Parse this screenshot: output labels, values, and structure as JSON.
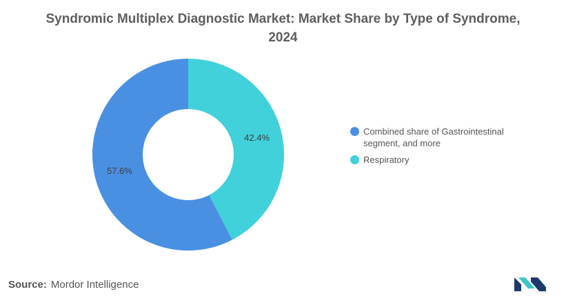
{
  "title": {
    "line1": "Syndromic Multiplex Diagnostic Market: Market Share by Type of Syndrome,",
    "line2": "2024"
  },
  "chart_data": {
    "type": "pie",
    "subtype": "donut",
    "title": "Syndromic Multiplex Diagnostic Market: Market Share by Type of Syndrome, 2024",
    "slices": [
      {
        "label": "Respiratory",
        "value": 42.4,
        "display": "42.4%",
        "color": "#40d1db"
      },
      {
        "label": "Combined share of Gastrointestinal segment, and more",
        "value": 57.6,
        "display": "57.6%",
        "color": "#4a90e2"
      }
    ],
    "legend_position": "right"
  },
  "legend": {
    "items": [
      {
        "label": "Combined share of Gastrointestinal segment, and more",
        "color": "#4a90e2"
      },
      {
        "label": "Respiratory",
        "color": "#40d1db"
      }
    ]
  },
  "source": {
    "label": "Source:",
    "text": "Mordor Intelligence"
  },
  "logo": {
    "icon": "mordor-intelligence-logo-icon",
    "colors": [
      "#1b3a6b",
      "#40c4cc"
    ]
  }
}
